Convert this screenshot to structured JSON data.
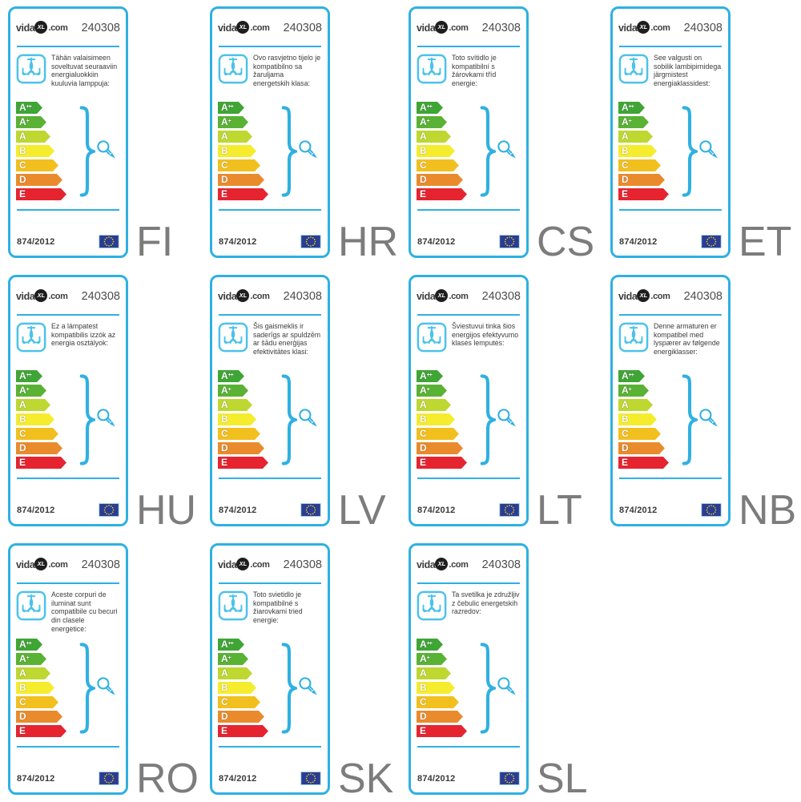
{
  "page": {
    "background": "#ffffff"
  },
  "label_common": {
    "brand": {
      "prefix": "vida",
      "circle": "XL",
      "suffix": ".com"
    },
    "product_number": "240308",
    "regulation": "874/2012",
    "colors": {
      "border_blue": "#2fb0e2",
      "icon_blue": "#4cc2ea",
      "text_dark": "#3c3c3c",
      "code_gray": "#7c7c7c",
      "flag_blue": "#2b3d91",
      "star_yellow": "#ffd617"
    },
    "energy_classes": [
      {
        "name": "class-a-plus-plus",
        "letter": "A",
        "sup": "++",
        "color": "#3fa535"
      },
      {
        "name": "class-a-plus",
        "letter": "A",
        "sup": "+",
        "color": "#59b234"
      },
      {
        "name": "class-a",
        "letter": "A",
        "sup": "",
        "color": "#bed731"
      },
      {
        "name": "class-b",
        "letter": "B",
        "sup": "",
        "color": "#f6ec2e"
      },
      {
        "name": "class-c",
        "letter": "C",
        "sup": "",
        "color": "#f2c01e"
      },
      {
        "name": "class-d",
        "letter": "D",
        "sup": "",
        "color": "#e98b2c"
      },
      {
        "name": "class-e",
        "letter": "E",
        "sup": "",
        "color": "#e62430"
      }
    ]
  },
  "labels": [
    {
      "code": "FI",
      "description": "Tähän valaisimeen soveltuvat seuraaviin energialuokkiin kuuluvia lamppuja:"
    },
    {
      "code": "HR",
      "description": "Ovo rasvjetno tijelo je kompatibilno sa žaruljama energetskih klasa:"
    },
    {
      "code": "CS",
      "description": "Toto svítidlo je kompatibilní s žárovkami tříd energie:"
    },
    {
      "code": "ET",
      "description": "See valgusti on sobilik lambipirnidega järgmistest energiaklassidest:"
    },
    {
      "code": "HU",
      "description": "Ez a lámpatest kompatibilis izzók az energia osztályok:"
    },
    {
      "code": "LV",
      "description": "Šis gaismeklis ir saderīgs ar spuldzēm ar šādu enerģijas efektivitātes klasi:"
    },
    {
      "code": "LT",
      "description": "Šviestuvui tinka šios energijos efektyvumo klasės lemputės:"
    },
    {
      "code": "NB",
      "description": "Denne armaturen er kompatibel med lyspærer av følgende energiklasser:"
    },
    {
      "code": "RO",
      "description": "Aceste corpuri de iluminat sunt compatibile cu becuri din clasele energetice:"
    },
    {
      "code": "SK",
      "description": "Toto svietidlo je kompatibilné s žiarovkami tried energie:"
    },
    {
      "code": "SL",
      "description": "Ta svetilka je združljiv z čebulic energetskih razredov:"
    }
  ]
}
